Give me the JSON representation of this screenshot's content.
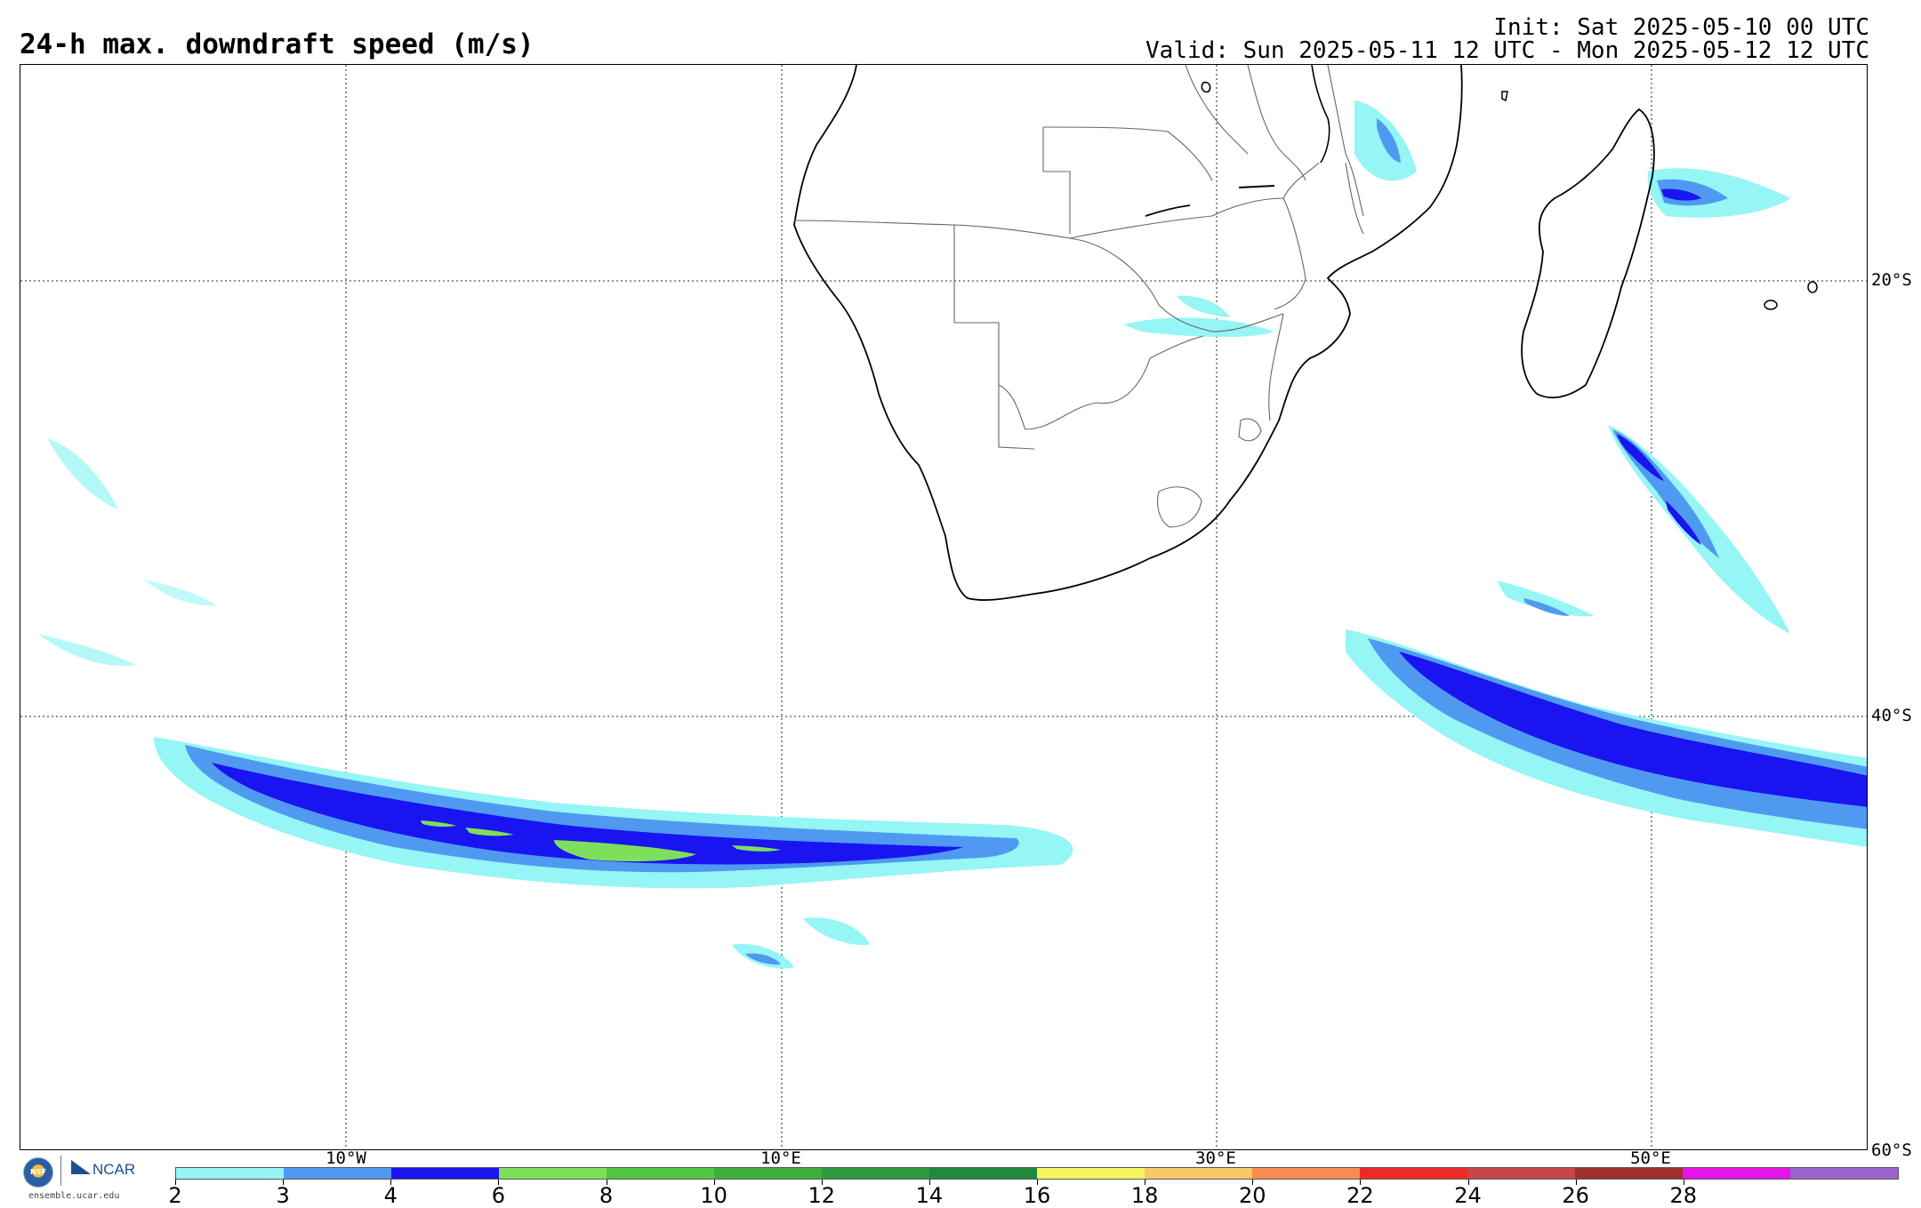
{
  "header": {
    "title": "24-h max. downdraft speed (m/s)",
    "init": "Init: Sat 2025-05-10 00 UTC",
    "valid": "Valid: Sun 2025-05-11 12 UTC - Mon 2025-05-12 12 UTC"
  },
  "map": {
    "lat_labels": [
      "20°S",
      "40°S",
      "60°S"
    ],
    "lon_labels": [
      "10°W",
      "10°E",
      "30°E",
      "50°E"
    ],
    "land_fill": "#ffffff",
    "coast_color": "#000000",
    "border_color": "#666666"
  },
  "logos": {
    "nsf_text": "NSF",
    "ncar_text": "NCAR",
    "site": "ensemble.ucar.edu"
  },
  "colorbar": {
    "labels": [
      "2",
      "3",
      "4",
      "6",
      "8",
      "10",
      "12",
      "14",
      "16",
      "18",
      "20",
      "22",
      "24",
      "26",
      "28"
    ],
    "colors": [
      "#96f5f5",
      "#4f9af0",
      "#1a14f0",
      "#7ee05a",
      "#52c841",
      "#3cb03c",
      "#2e9a40",
      "#1f8a3e",
      "#f5f560",
      "#fac864",
      "#fa8c50",
      "#f02828",
      "#c84646",
      "#a03030",
      "#e614e6",
      "#9a64d0"
    ]
  }
}
